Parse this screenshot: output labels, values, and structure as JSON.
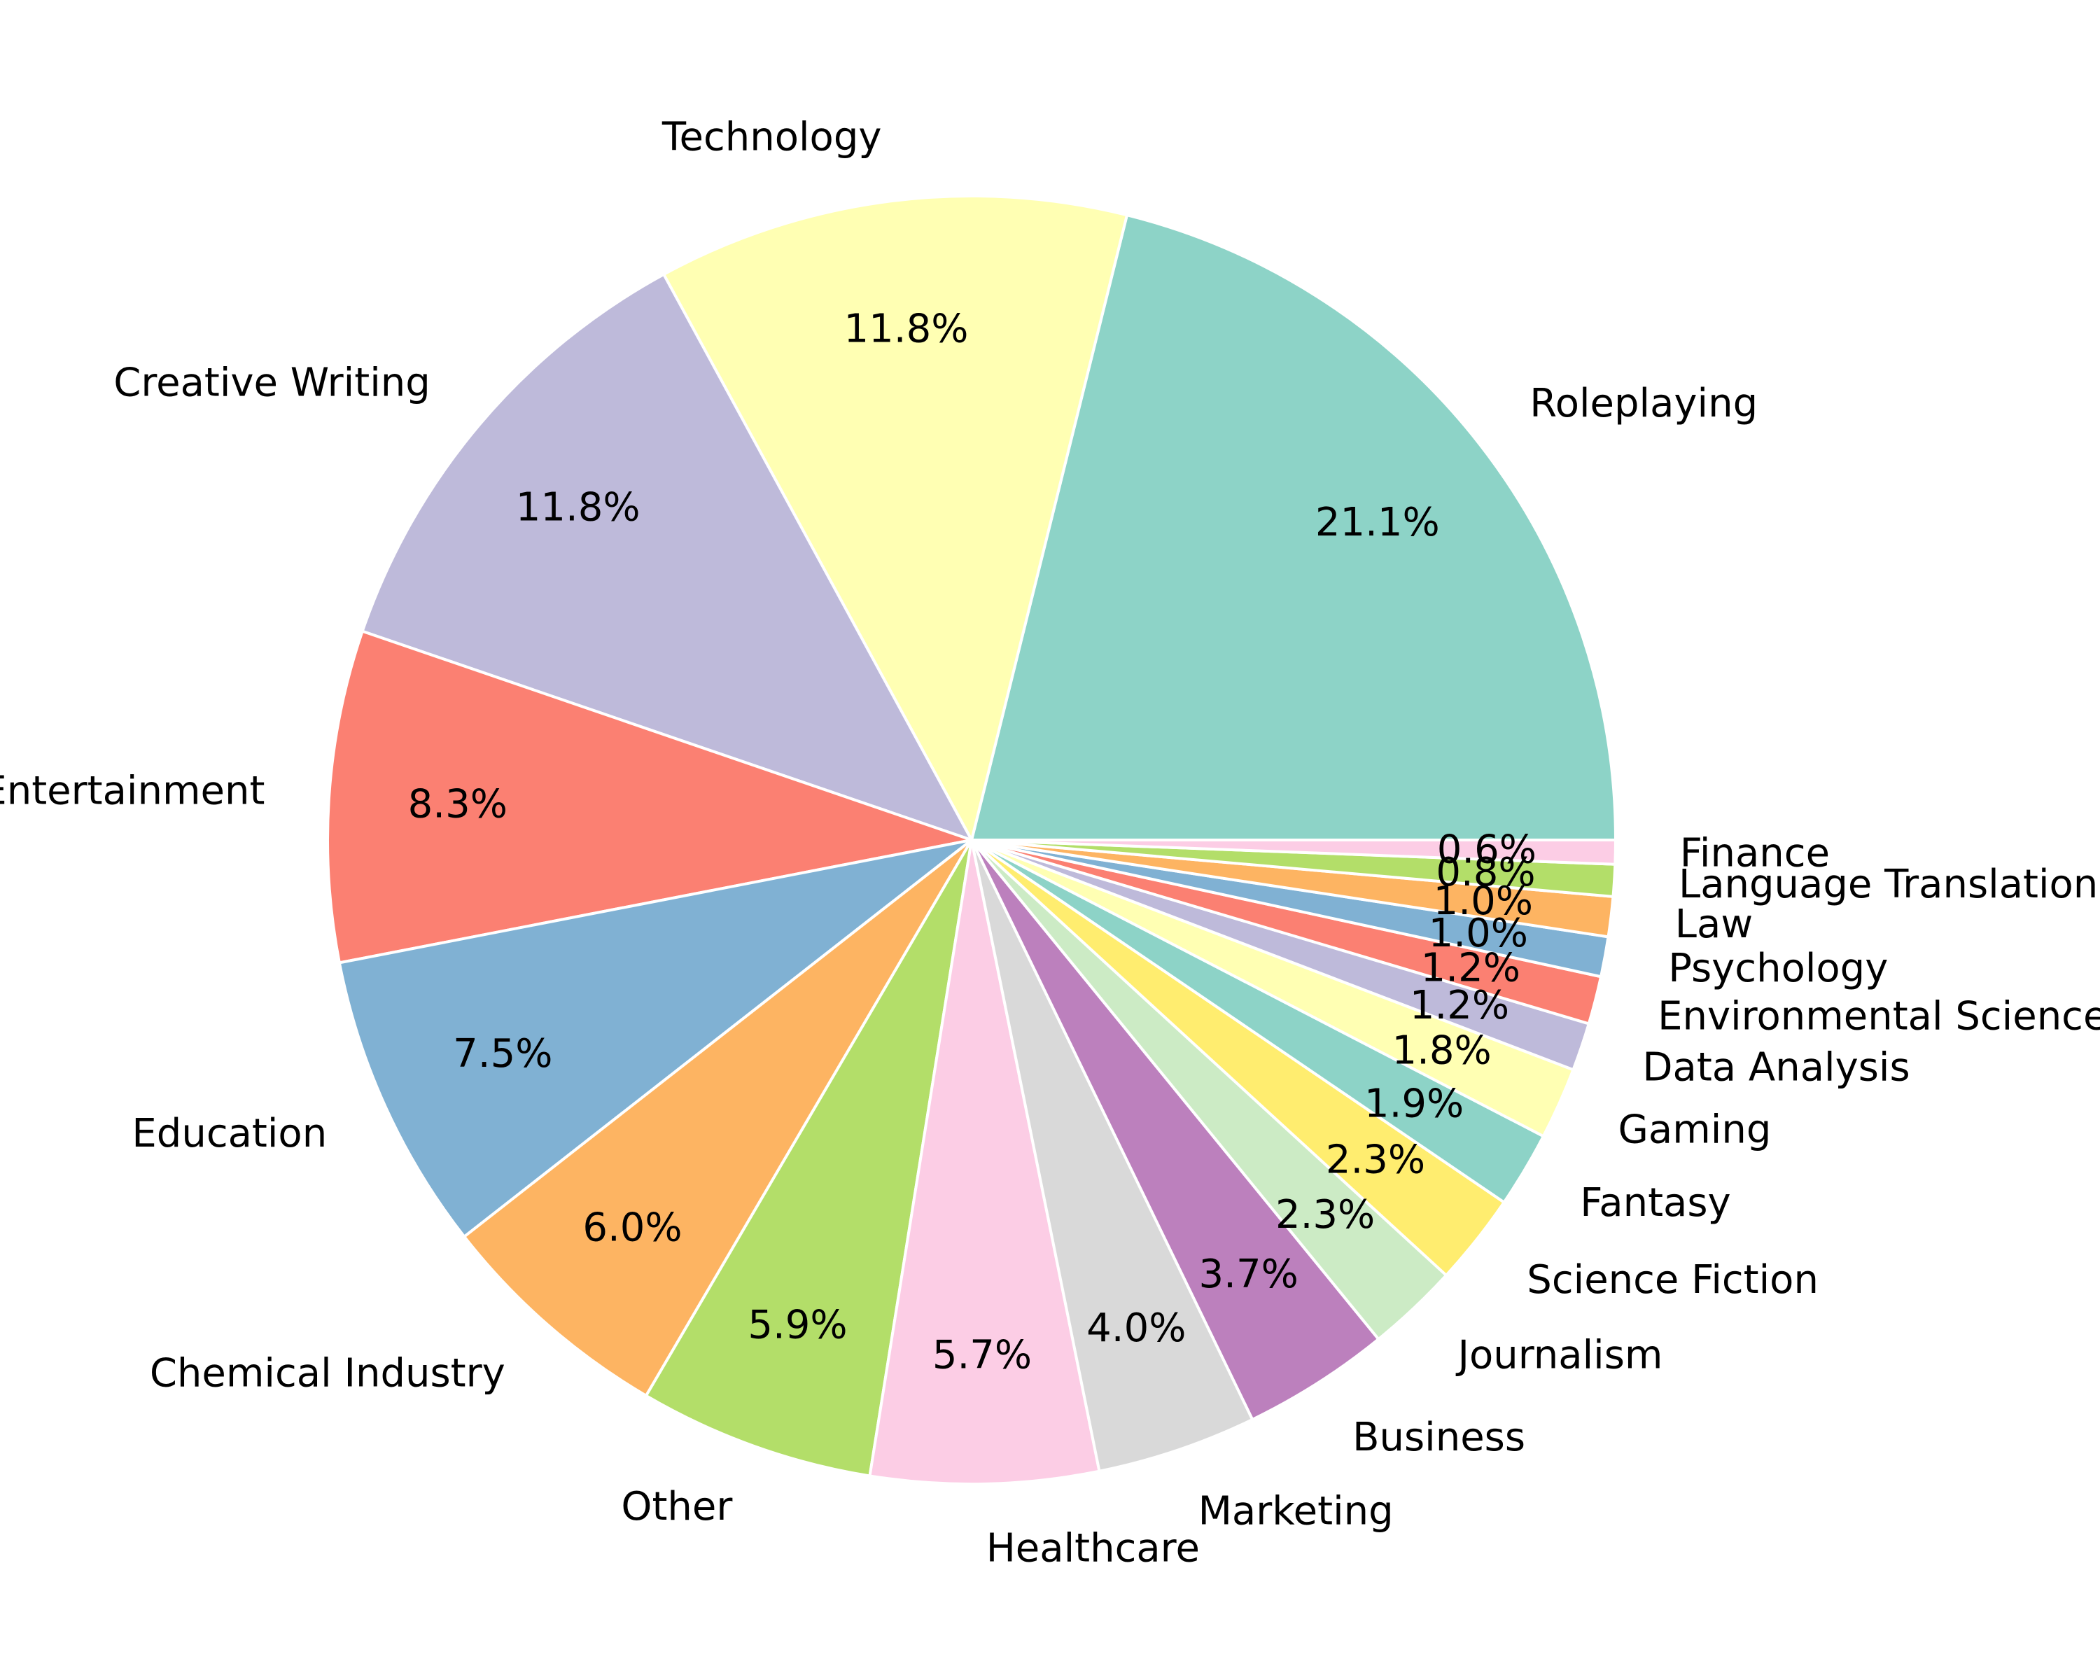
{
  "chart_data": {
    "type": "pie",
    "title": "",
    "start_angle_deg": 0,
    "direction": "counterclockwise",
    "label_format": "{pct}%",
    "slices": [
      {
        "label": "Roleplaying",
        "value": 21.1,
        "color": "#8dd3c7"
      },
      {
        "label": "Technology",
        "value": 11.8,
        "color": "#ffffb3"
      },
      {
        "label": "Creative Writing",
        "value": 11.8,
        "color": "#bebada"
      },
      {
        "label": "Entertainment",
        "value": 8.3,
        "color": "#fb8072"
      },
      {
        "label": "Education",
        "value": 7.5,
        "color": "#80b1d3"
      },
      {
        "label": "Chemical Industry",
        "value": 6.0,
        "color": "#fdb462"
      },
      {
        "label": "Other",
        "value": 5.9,
        "color": "#b3de69"
      },
      {
        "label": "Healthcare",
        "value": 5.7,
        "color": "#fccde5"
      },
      {
        "label": "Marketing",
        "value": 4.0,
        "color": "#d9d9d9"
      },
      {
        "label": "Business",
        "value": 3.7,
        "color": "#bc80bd"
      },
      {
        "label": "Journalism",
        "value": 2.3,
        "color": "#ccebc5"
      },
      {
        "label": "Science Fiction",
        "value": 2.3,
        "color": "#ffed6f"
      },
      {
        "label": "Fantasy",
        "value": 1.9,
        "color": "#8dd3c7"
      },
      {
        "label": "Gaming",
        "value": 1.8,
        "color": "#ffffb3"
      },
      {
        "label": "Data Analysis",
        "value": 1.2,
        "color": "#bebada"
      },
      {
        "label": "Environmental Science",
        "value": 1.2,
        "color": "#fb8072"
      },
      {
        "label": "Psychology",
        "value": 1.0,
        "color": "#80b1d3"
      },
      {
        "label": "Law",
        "value": 1.0,
        "color": "#fdb462"
      },
      {
        "label": "Language Translation",
        "value": 0.8,
        "color": "#b3de69"
      },
      {
        "label": "Finance",
        "value": 0.6,
        "color": "#fccde5"
      }
    ]
  }
}
